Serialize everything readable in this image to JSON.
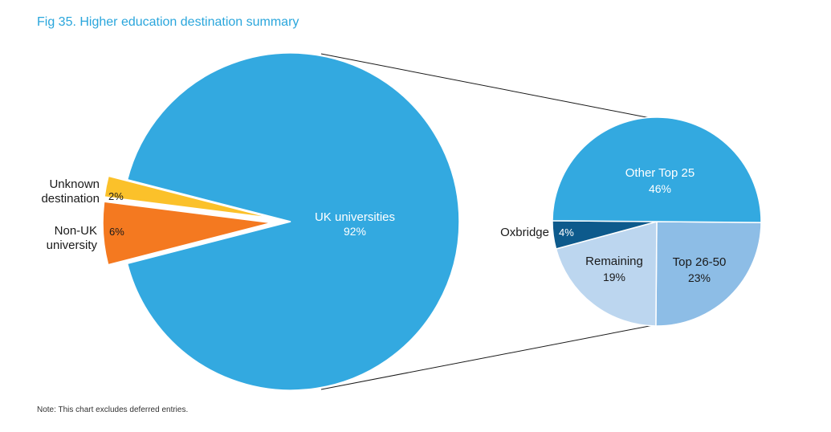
{
  "title": "Fig 35. Higher education destination summary",
  "note": "Note: This chart excludes deferred entries.",
  "chart_data": [
    {
      "type": "pie",
      "slices": [
        {
          "name": "UK universities",
          "value": 92,
          "label": "92%",
          "color": "#33a9e0"
        },
        {
          "name": "Non-UK university",
          "value": 6,
          "label": "6%",
          "color": "#f47920",
          "name_lines": [
            "Non-UK",
            "university"
          ]
        },
        {
          "name": "Unknown destination",
          "value": 2,
          "label": "2%",
          "color": "#fbc12a",
          "name_lines": [
            "Unknown",
            "destination"
          ]
        }
      ]
    },
    {
      "type": "pie",
      "slices": [
        {
          "name": "Other Top 25",
          "value": 46,
          "label": "46%",
          "color": "#33a9e0"
        },
        {
          "name": "Top 26-50",
          "value": 23,
          "label": "23%",
          "color": "#8dbde6"
        },
        {
          "name": "Remaining",
          "value": 19,
          "label": "19%",
          "color": "#bcd6ef"
        },
        {
          "name": "Oxbridge",
          "value": 4,
          "label": "4%",
          "color": "#0d5a8c"
        }
      ]
    }
  ]
}
